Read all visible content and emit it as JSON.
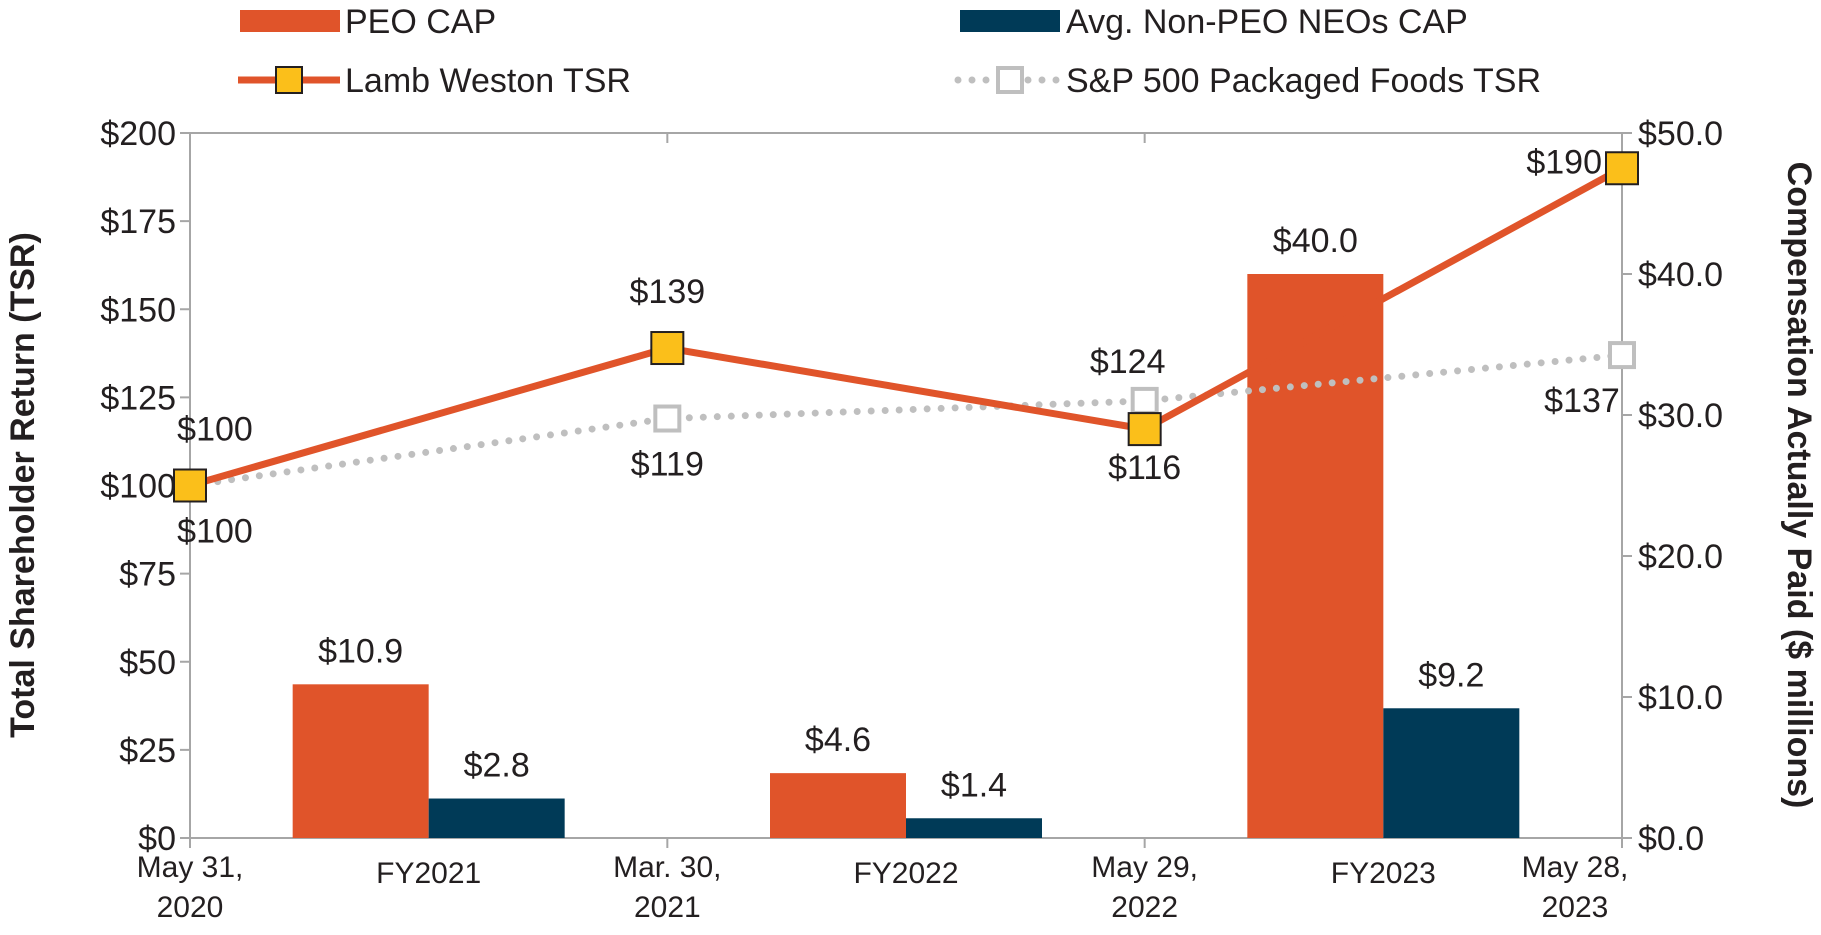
{
  "chart_data": {
    "type": "bar",
    "x_ticks": [
      {
        "line1": "May 31,",
        "line2": "2020"
      },
      {
        "line1": "Mar. 30,",
        "line2": "2021"
      },
      {
        "line1": "May 29,",
        "line2": "2022"
      },
      {
        "line1": "May 28,",
        "line2": "2023"
      }
    ],
    "categories": [
      "FY2021",
      "FY2022",
      "FY2023"
    ],
    "left_axis": {
      "label": "Total Shareholder Return (TSR)",
      "ylim": [
        0,
        200
      ],
      "ticks": [
        "$0",
        "$25",
        "$50",
        "$75",
        "$100",
        "$125",
        "$150",
        "$175",
        "$200"
      ]
    },
    "right_axis": {
      "label": "Compensation Actually Paid ($ millions)",
      "ylim": [
        0,
        50
      ],
      "ticks": [
        "$0.0",
        "$10.0",
        "$20.0",
        "$30.0",
        "$40.0",
        "$50.0"
      ]
    },
    "bar_series": [
      {
        "name": "PEO CAP",
        "color": "#e0542a",
        "values": [
          10.9,
          4.6,
          40.0
        ],
        "labels": [
          "$10.9",
          "$4.6",
          "$40.0"
        ]
      },
      {
        "name": "Avg. Non-PEO NEOs CAP",
        "color": "#003a57",
        "values": [
          2.8,
          1.4,
          9.2
        ],
        "labels": [
          "$2.8",
          "$1.4",
          "$9.2"
        ]
      }
    ],
    "line_series": [
      {
        "name": "Lamb Weston TSR",
        "color": "#e0542a",
        "marker_color": "#fbbf1a",
        "style": "solid",
        "values": [
          100,
          139,
          116,
          190
        ],
        "labels": [
          "$100",
          "$139",
          "$116",
          "$190"
        ]
      },
      {
        "name": "S&P 500 Packaged Foods TSR",
        "color": "#bfbfbf",
        "style": "dotted",
        "values": [
          100,
          119,
          124,
          137
        ],
        "labels": [
          "$100",
          "$119",
          "$124",
          "$137"
        ]
      }
    ],
    "legend_position": "top",
    "grid": false
  }
}
